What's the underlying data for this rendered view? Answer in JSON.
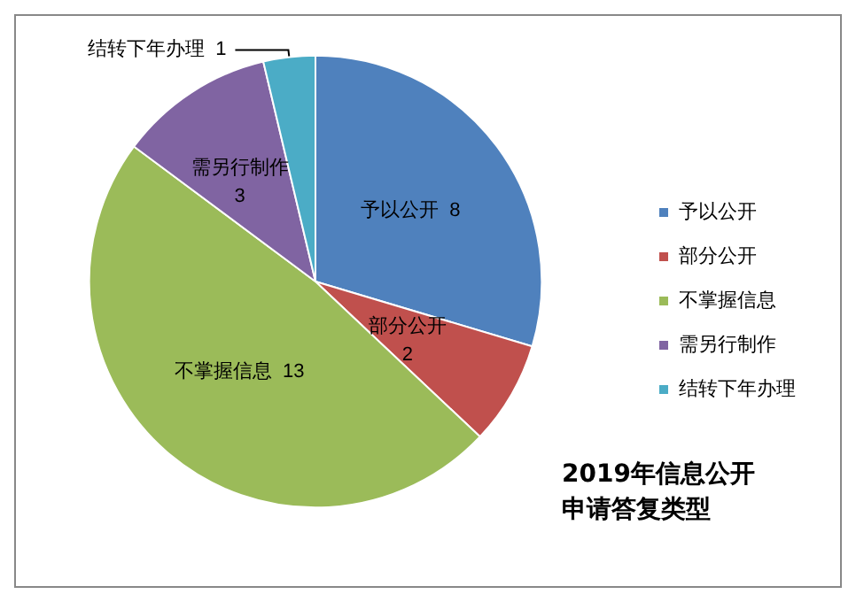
{
  "chart_data": {
    "type": "pie",
    "title": "2019年信息公开申请答复类型",
    "categories": [
      "予以公开",
      "部分公开",
      "不掌握信息",
      "需另行制作",
      "结转下年办理"
    ],
    "values": [
      8,
      2,
      13,
      3,
      1
    ],
    "colors": [
      "#4f81bd",
      "#c0504d",
      "#9bbb59",
      "#8064a2",
      "#4bacc6"
    ],
    "data_labels": true,
    "legend": "right"
  }
}
